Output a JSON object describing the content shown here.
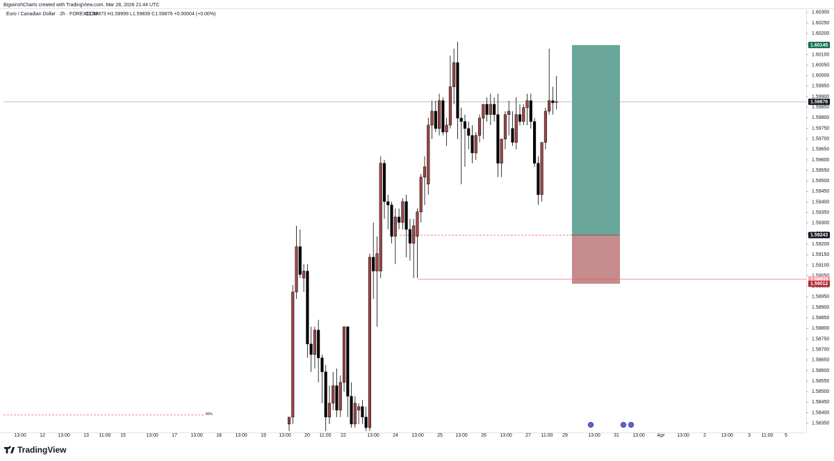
{
  "watermark": "BigwinshCharts created with TradingView.com, Mar 28, 2026 21:44 UTC",
  "footer": "TradingView",
  "chart_data": {
    "type": "candlestick",
    "title": "Euro / Canadian Dollar · 2h · FOREXCOM",
    "subtitle": "O1.59873  H1.59999  L1.59839  C1.59876  +0.00004 (+0.00%)",
    "up_color": "#9e4646",
    "down_color": "#000000",
    "x_labels": [
      "13:00",
      "12",
      "13:00",
      "13",
      "11:00",
      "15",
      "13:00",
      "17",
      "13:00",
      "18",
      "13:00",
      "19",
      "13:00",
      "20",
      "11:00",
      "22",
      "13:00",
      "24",
      "13:00",
      "25",
      "13:00",
      "26",
      "13:00",
      "27",
      "11:00",
      "29",
      "13:00",
      "31",
      "13:00",
      "Apr",
      "13:00",
      "2",
      "13:00",
      "3",
      "11:00",
      "5"
    ],
    "open": [
      1.58346,
      1.58379,
      1.58973,
      1.59188,
      1.59039,
      1.59072,
      1.58726,
      1.58676,
      1.58792,
      1.5866,
      1.58594,
      1.58379,
      1.58445,
      1.58528,
      1.58412,
      1.58544,
      1.58808,
      1.58478,
      1.58346,
      1.58412,
      1.58429,
      1.58379,
      1.58329,
      1.59138,
      1.59072,
      1.59072,
      1.59584,
      1.59402,
      1.59386,
      1.59237,
      1.59329,
      1.59303,
      1.59402,
      1.5927,
      1.59204,
      1.59237,
      1.59353,
      1.59518,
      1.59485,
      1.59765,
      1.59831,
      1.59749,
      1.59881,
      1.59732,
      1.59765,
      1.59947,
      1.60062,
      1.59798,
      1.59782,
      1.59749,
      1.59716,
      1.59633,
      1.59716,
      1.59798,
      1.59864,
      1.59815,
      1.59864,
      1.59815,
      1.59584,
      1.59699,
      1.59815,
      1.59749,
      1.59683,
      1.59815,
      1.59782,
      1.59848,
      1.59881,
      1.59782,
      1.59584,
      1.59435,
      1.59683,
      1.59831,
      1.59881,
      1.59873
    ],
    "high": [
      1.58379,
      1.59006,
      1.59287,
      1.5927,
      1.59105,
      1.59105,
      1.58808,
      1.58808,
      1.58841,
      1.58676,
      1.58627,
      1.58528,
      1.58594,
      1.5861,
      1.58577,
      1.58808,
      1.58808,
      1.58544,
      1.58478,
      1.58445,
      1.58461,
      1.58429,
      1.59155,
      1.59303,
      1.59237,
      1.59617,
      1.596,
      1.59435,
      1.59402,
      1.59369,
      1.59369,
      1.59418,
      1.59435,
      1.5932,
      1.5932,
      1.59369,
      1.59534,
      1.59617,
      1.598,
      1.59881,
      1.59881,
      1.59914,
      1.59897,
      1.598,
      1.60095,
      1.60128,
      1.60161,
      1.59848,
      1.59815,
      1.59782,
      1.59765,
      1.59732,
      1.59815,
      1.59864,
      1.59897,
      1.59914,
      1.59897,
      1.59914,
      1.59699,
      1.59831,
      1.59881,
      1.59831,
      1.59897,
      1.59864,
      1.59864,
      1.59914,
      1.59914,
      1.598,
      1.59617,
      1.59683,
      1.59848,
      1.60128,
      1.59947,
      1.59999
    ],
    "low": [
      1.58313,
      1.58346,
      1.5894,
      1.59039,
      1.58973,
      1.5866,
      1.58594,
      1.5861,
      1.58544,
      1.58445,
      1.58313,
      1.58346,
      1.58412,
      1.58379,
      1.58379,
      1.585,
      1.58379,
      1.58329,
      1.58329,
      1.58346,
      1.58346,
      1.58313,
      1.58313,
      1.5894,
      1.58808,
      1.59039,
      1.5932,
      1.5927,
      1.59204,
      1.59105,
      1.5927,
      1.5927,
      1.59138,
      1.59122,
      1.59039,
      1.59039,
      1.59303,
      1.59386,
      1.59435,
      1.59699,
      1.59732,
      1.59716,
      1.59716,
      1.59666,
      1.59749,
      1.59864,
      1.59699,
      1.59484,
      1.59567,
      1.5965,
      1.59584,
      1.596,
      1.59683,
      1.59699,
      1.59782,
      1.59765,
      1.59782,
      1.59518,
      1.59518,
      1.5965,
      1.59716,
      1.59666,
      1.5965,
      1.59765,
      1.59765,
      1.59765,
      1.59749,
      1.59567,
      1.59386,
      1.59402,
      1.5965,
      1.59815,
      1.59815,
      1.59839
    ],
    "close": [
      1.58379,
      1.58973,
      1.59188,
      1.59056,
      1.59072,
      1.58726,
      1.58676,
      1.58792,
      1.5866,
      1.58594,
      1.58379,
      1.58445,
      1.58528,
      1.58412,
      1.58544,
      1.58808,
      1.58478,
      1.58346,
      1.58445,
      1.58429,
      1.58379,
      1.58329,
      1.59138,
      1.59072,
      1.59155,
      1.59584,
      1.59402,
      1.59386,
      1.59237,
      1.59329,
      1.59303,
      1.59402,
      1.5927,
      1.59204,
      1.59287,
      1.59353,
      1.59518,
      1.59567,
      1.59765,
      1.59831,
      1.59749,
      1.59881,
      1.59732,
      1.59765,
      1.59947,
      1.60062,
      1.59798,
      1.59782,
      1.59749,
      1.59716,
      1.59633,
      1.59716,
      1.59798,
      1.59864,
      1.59815,
      1.59864,
      1.59815,
      1.59584,
      1.59699,
      1.59815,
      1.59831,
      1.59683,
      1.59815,
      1.59782,
      1.59848,
      1.59881,
      1.59782,
      1.59584,
      1.59435,
      1.59683,
      1.59831,
      1.59881,
      1.59871,
      1.59876
    ],
    "ylim": [
      1.58306,
      1.60316
    ],
    "yticks": [
      {
        "value": 1.5835,
        "label": "1.58350"
      },
      {
        "value": 1.584,
        "label": "1.58400"
      },
      {
        "value": 1.5845,
        "label": "1.58450"
      },
      {
        "value": 1.585,
        "label": "1.58500"
      },
      {
        "value": 1.5855,
        "label": "1.58550"
      },
      {
        "value": 1.586,
        "label": "1.58600"
      },
      {
        "value": 1.5865,
        "label": "1.58650"
      },
      {
        "value": 1.587,
        "label": "1.58700"
      },
      {
        "value": 1.5875,
        "label": "1.58750"
      },
      {
        "value": 1.588,
        "label": "1.58800"
      },
      {
        "value": 1.5885,
        "label": "1.58850"
      },
      {
        "value": 1.589,
        "label": "1.58900"
      },
      {
        "value": 1.5895,
        "label": "1.58950"
      },
      {
        "value": 1.59,
        "label": "1.59000"
      },
      {
        "value": 1.5905,
        "label": "1.59050"
      },
      {
        "value": 1.591,
        "label": "1.59100"
      },
      {
        "value": 1.5915,
        "label": "1.59150"
      },
      {
        "value": 1.592,
        "label": "1.59200"
      },
      {
        "value": 1.5925,
        "label": "1.59250"
      },
      {
        "value": 1.593,
        "label": "1.59300"
      },
      {
        "value": 1.5935,
        "label": "1.59350"
      },
      {
        "value": 1.594,
        "label": "1.59400"
      },
      {
        "value": 1.5945,
        "label": "1.59450"
      },
      {
        "value": 1.595,
        "label": "1.59500"
      },
      {
        "value": 1.5955,
        "label": "1.59550"
      },
      {
        "value": 1.596,
        "label": "1.59600"
      },
      {
        "value": 1.5965,
        "label": "1.59650"
      },
      {
        "value": 1.597,
        "label": "1.59700"
      },
      {
        "value": 1.5975,
        "label": "1.59750"
      },
      {
        "value": 1.598,
        "label": "1.59800"
      },
      {
        "value": 1.5985,
        "label": "1.59850"
      },
      {
        "value": 1.599,
        "label": "1.59900"
      },
      {
        "value": 1.5995,
        "label": "1.59950"
      },
      {
        "value": 1.6,
        "label": "1.60000"
      },
      {
        "value": 1.6005,
        "label": "1.60050"
      },
      {
        "value": 1.601,
        "label": "1.60100"
      },
      {
        "value": 1.6015,
        "label": "1.60150"
      },
      {
        "value": 1.602,
        "label": "1.60200"
      },
      {
        "value": 1.6025,
        "label": "1.60250"
      },
      {
        "value": 1.603,
        "label": "1.60300"
      }
    ],
    "position": {
      "take_profit": 1.60145,
      "entry": 1.59243,
      "stop": 1.59012,
      "profit_color": "#6aa699",
      "loss_color": "#c58b8d"
    },
    "alert_level": {
      "value": 1.59033,
      "color": "#f7525f"
    },
    "fib_level": {
      "value": 1.58389,
      "label": "80%",
      "color": "#f7525f"
    }
  }
}
